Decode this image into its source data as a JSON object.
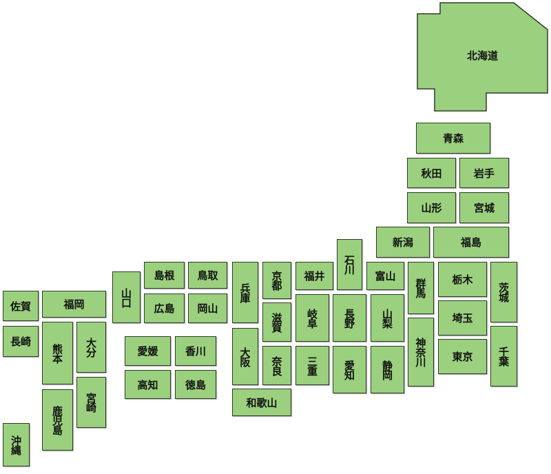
{
  "map": {
    "fill_color": "#9bd07e",
    "border_color": "#2f3a2a",
    "prefectures": {
      "hokkaido": "北海道",
      "aomori": "青森",
      "akita": "秋田",
      "iwate": "岩手",
      "yamagata": "山形",
      "miyagi": "宮城",
      "niigata": "新潟",
      "fukushima": "福島",
      "gunma": "群馬",
      "tochigi": "栃木",
      "ibaraki": "茨城",
      "saitama": "埼玉",
      "kanagawa": "神奈川",
      "tokyo": "東京",
      "chiba": "千葉",
      "ishikawa": "石川",
      "fukui": "福井",
      "toyama": "富山",
      "gifu": "岐阜",
      "nagano": "長野",
      "yamanashi": "山梨",
      "mie": "三重",
      "aichi": "愛知",
      "shizuoka": "静岡",
      "hyogo": "兵庫",
      "kyoto": "京都",
      "shiga": "滋賀",
      "osaka": "大阪",
      "nara": "奈良",
      "wakayama": "和歌山",
      "shimane": "島根",
      "tottori": "鳥取",
      "yamaguchi": "山口",
      "hiroshima": "広島",
      "okayama": "岡山",
      "ehime": "愛媛",
      "kagawa": "香川",
      "kochi": "高知",
      "tokushima": "徳島",
      "saga": "佐賀",
      "fukuoka": "福岡",
      "nagasaki": "長崎",
      "kumamoto": "熊本",
      "oita": "大分",
      "miyazaki": "宮崎",
      "kagoshima": "鹿児島",
      "okinawa": "沖縄"
    }
  }
}
